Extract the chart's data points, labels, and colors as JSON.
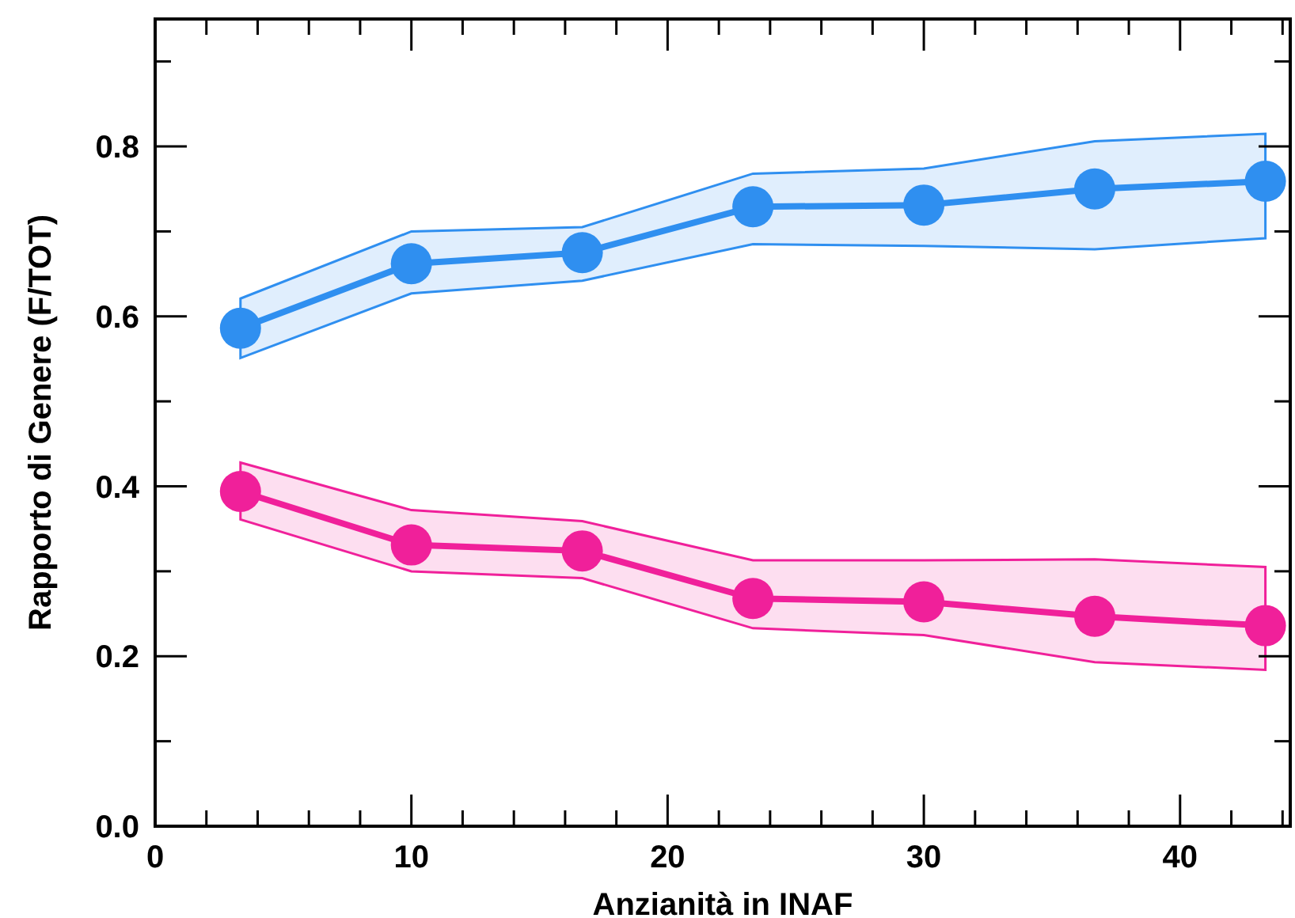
{
  "chart_data": {
    "type": "line",
    "xlabel": "Anzianità in INAF",
    "ylabel": "Rapporto di Genere (F/TOT)",
    "xlim": [
      0,
      44.3
    ],
    "ylim": [
      0,
      0.95
    ],
    "xticks": [
      0,
      {
        "value": 2,
        "label": null
      },
      {
        "value": 4,
        "label": null
      },
      {
        "value": 6,
        "label": null
      },
      {
        "value": 8,
        "label": null
      },
      10,
      {
        "value": 12,
        "label": null
      },
      {
        "value": 14,
        "label": null
      },
      {
        "value": 16,
        "label": null
      },
      {
        "value": 18,
        "label": null
      },
      20,
      {
        "value": 22,
        "label": null
      },
      {
        "value": 24,
        "label": null
      },
      {
        "value": 26,
        "label": null
      },
      {
        "value": 28,
        "label": null
      },
      30,
      {
        "value": 32,
        "label": null
      },
      {
        "value": 34,
        "label": null
      },
      {
        "value": 36,
        "label": null
      },
      {
        "value": 38,
        "label": null
      },
      40,
      {
        "value": 42,
        "label": null
      },
      {
        "value": 44,
        "label": null
      }
    ],
    "yticks": [
      {
        "value": 0,
        "label": "0.0"
      },
      {
        "value": 0.1,
        "label": null
      },
      0.2,
      {
        "value": 0.3,
        "label": null
      },
      0.4,
      {
        "value": 0.5,
        "label": null
      },
      0.6,
      {
        "value": 0.7,
        "label": null
      },
      0.8,
      {
        "value": 0.9,
        "label": null
      }
    ],
    "grid": false,
    "marker": "circle",
    "line_style": "solid",
    "x": [
      3.33,
      10,
      16.67,
      23.33,
      30,
      36.67,
      43.33
    ],
    "series": [
      {
        "color": "#2f8ff0",
        "values": [
          0.586,
          0.662,
          0.675,
          0.729,
          0.731,
          0.75,
          0.759
        ],
        "lower": [
          0.551,
          0.627,
          0.642,
          0.685,
          0.683,
          0.679,
          0.692
        ],
        "upper": [
          0.621,
          0.7,
          0.705,
          0.768,
          0.774,
          0.806,
          0.815
        ]
      },
      {
        "color": "#f0209a",
        "values": [
          0.394,
          0.331,
          0.324,
          0.268,
          0.264,
          0.247,
          0.236
        ],
        "lower": [
          0.361,
          0.3,
          0.292,
          0.233,
          0.225,
          0.193,
          0.184
        ],
        "upper": [
          0.428,
          0.372,
          0.359,
          0.313,
          0.313,
          0.314,
          0.305
        ]
      }
    ]
  }
}
